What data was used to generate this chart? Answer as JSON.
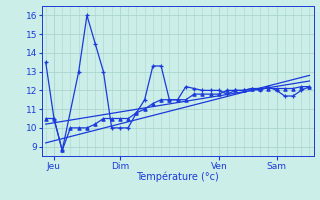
{
  "title": "",
  "xlabel": "Température (°c)",
  "ylabel": "",
  "background_color": "#cceee8",
  "grid_color": "#aad4cc",
  "line_color": "#1a3adb",
  "ylim": [
    8.5,
    16.5
  ],
  "yticks": [
    9,
    10,
    11,
    12,
    13,
    14,
    15,
    16
  ],
  "day_labels": [
    "Jeu",
    "Dim",
    "Ven",
    "Sam"
  ],
  "day_positions": [
    1,
    9,
    21,
    28
  ],
  "x_total_points": 33,
  "xlim": [
    -0.5,
    32.5
  ],
  "series1_x": [
    0,
    1,
    2,
    4,
    5,
    6,
    7,
    8,
    9,
    10,
    11,
    12,
    13,
    14,
    15,
    16,
    17,
    18,
    19,
    20,
    21,
    22,
    23,
    24,
    25,
    26,
    27,
    28,
    29,
    30,
    31,
    32
  ],
  "series1_y": [
    13.5,
    10.5,
    8.8,
    13.0,
    16.0,
    14.5,
    13.0,
    10.0,
    10.0,
    10.0,
    10.8,
    11.5,
    13.3,
    13.3,
    11.5,
    11.5,
    12.2,
    12.1,
    12.0,
    12.0,
    12.0,
    11.8,
    12.0,
    12.0,
    12.1,
    12.0,
    12.2,
    12.0,
    11.7,
    11.7,
    12.0,
    12.2
  ],
  "series2_x": [
    0,
    1,
    2,
    3,
    4,
    5,
    6,
    7,
    8,
    9,
    10,
    11,
    12,
    13,
    14,
    15,
    16,
    17,
    18,
    19,
    20,
    21,
    22,
    23,
    24,
    25,
    26,
    27,
    28,
    29,
    30,
    31,
    32
  ],
  "series2_y": [
    10.5,
    10.5,
    8.8,
    10.0,
    10.0,
    10.0,
    10.2,
    10.5,
    10.5,
    10.5,
    10.5,
    10.8,
    11.0,
    11.3,
    11.5,
    11.5,
    11.5,
    11.5,
    11.8,
    11.8,
    11.8,
    11.8,
    12.0,
    12.0,
    12.0,
    12.1,
    12.1,
    12.1,
    12.1,
    12.1,
    12.1,
    12.2,
    12.2
  ],
  "series3_y_start": 9.2,
  "series3_y_end": 12.8,
  "series4_y_start": 10.2,
  "series4_y_end": 12.5
}
